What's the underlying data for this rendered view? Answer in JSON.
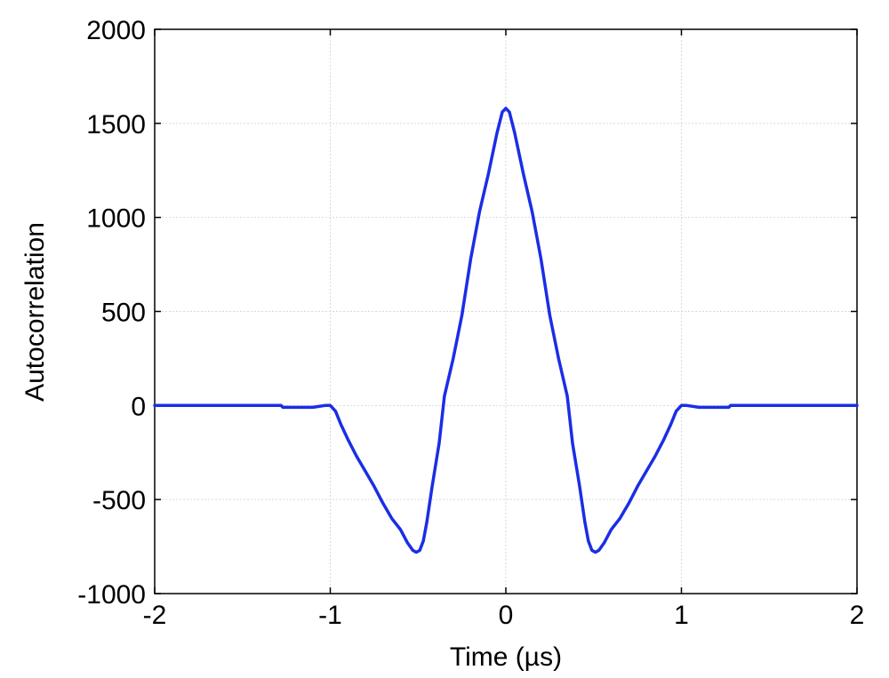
{
  "chart_data": {
    "type": "line",
    "xlabel": "Time (µs)",
    "ylabel": "Autocorrelation",
    "xlim": [
      -2,
      2
    ],
    "ylim": [
      -1000,
      2000
    ],
    "xticks": [
      -2,
      -1,
      0,
      1,
      2
    ],
    "xtick_labels": [
      "-2",
      "-1",
      "0",
      "1",
      "2"
    ],
    "yticks": [
      -1000,
      -500,
      0,
      500,
      1000,
      1500,
      2000
    ],
    "ytick_labels": [
      "-1000",
      "-500",
      "0",
      "500",
      "1000",
      "1500",
      "2000"
    ],
    "grid": true,
    "series": [
      {
        "color": "#1a2ee6",
        "x": [
          -2.0,
          -1.6,
          -1.28,
          -1.27,
          -1.1,
          -1.03,
          -1.0,
          -0.97,
          -0.94,
          -0.9,
          -0.85,
          -0.8,
          -0.75,
          -0.7,
          -0.65,
          -0.6,
          -0.56,
          -0.53,
          -0.51,
          -0.49,
          -0.47,
          -0.45,
          -0.42,
          -0.38,
          -0.35,
          -0.3,
          -0.25,
          -0.2,
          -0.15,
          -0.1,
          -0.05,
          -0.02,
          0.0,
          0.02,
          0.05,
          0.1,
          0.15,
          0.2,
          0.25,
          0.3,
          0.35,
          0.38,
          0.42,
          0.45,
          0.47,
          0.49,
          0.51,
          0.53,
          0.56,
          0.6,
          0.65,
          0.7,
          0.75,
          0.8,
          0.85,
          0.9,
          0.94,
          0.97,
          1.0,
          1.03,
          1.1,
          1.27,
          1.28,
          1.6,
          2.0
        ],
        "y": [
          0,
          0,
          0,
          -10,
          -10,
          0,
          0,
          -30,
          -100,
          -180,
          -270,
          -350,
          -430,
          -520,
          -600,
          -660,
          -730,
          -770,
          -780,
          -770,
          -720,
          -620,
          -430,
          -200,
          50,
          250,
          480,
          780,
          1030,
          1230,
          1450,
          1560,
          1580,
          1560,
          1450,
          1230,
          1030,
          780,
          480,
          250,
          50,
          -200,
          -430,
          -620,
          -720,
          -770,
          -780,
          -770,
          -730,
          -660,
          -600,
          -520,
          -430,
          -350,
          -270,
          -180,
          -100,
          -30,
          0,
          0,
          -10,
          -10,
          0,
          0,
          0
        ]
      }
    ]
  }
}
